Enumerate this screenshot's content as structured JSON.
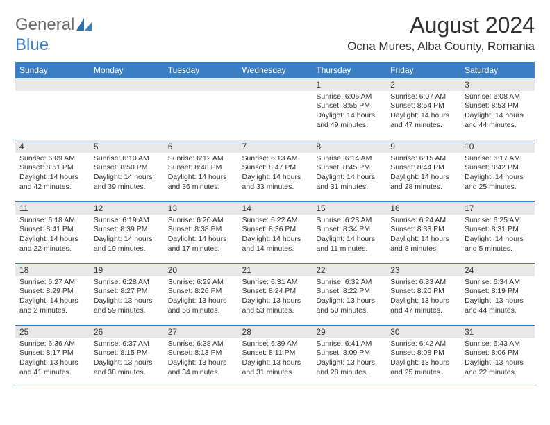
{
  "logo": {
    "general": "General",
    "blue": "Blue"
  },
  "title": "August 2024",
  "location": "Ocna Mures, Alba County, Romania",
  "header_color": "#3a7fc4",
  "cell_gray": "#e8e8e8",
  "text_color": "#333333",
  "body_fontsize": 10.5,
  "title_fontsize": 32,
  "days": [
    "Sunday",
    "Monday",
    "Tuesday",
    "Wednesday",
    "Thursday",
    "Friday",
    "Saturday"
  ],
  "weeks": [
    [
      null,
      null,
      null,
      null,
      {
        "n": "1",
        "sr": "6:06 AM",
        "ss": "8:55 PM",
        "dl": "14 hours and 49 minutes."
      },
      {
        "n": "2",
        "sr": "6:07 AM",
        "ss": "8:54 PM",
        "dl": "14 hours and 47 minutes."
      },
      {
        "n": "3",
        "sr": "6:08 AM",
        "ss": "8:53 PM",
        "dl": "14 hours and 44 minutes."
      }
    ],
    [
      {
        "n": "4",
        "sr": "6:09 AM",
        "ss": "8:51 PM",
        "dl": "14 hours and 42 minutes."
      },
      {
        "n": "5",
        "sr": "6:10 AM",
        "ss": "8:50 PM",
        "dl": "14 hours and 39 minutes."
      },
      {
        "n": "6",
        "sr": "6:12 AM",
        "ss": "8:48 PM",
        "dl": "14 hours and 36 minutes."
      },
      {
        "n": "7",
        "sr": "6:13 AM",
        "ss": "8:47 PM",
        "dl": "14 hours and 33 minutes."
      },
      {
        "n": "8",
        "sr": "6:14 AM",
        "ss": "8:45 PM",
        "dl": "14 hours and 31 minutes."
      },
      {
        "n": "9",
        "sr": "6:15 AM",
        "ss": "8:44 PM",
        "dl": "14 hours and 28 minutes."
      },
      {
        "n": "10",
        "sr": "6:17 AM",
        "ss": "8:42 PM",
        "dl": "14 hours and 25 minutes."
      }
    ],
    [
      {
        "n": "11",
        "sr": "6:18 AM",
        "ss": "8:41 PM",
        "dl": "14 hours and 22 minutes."
      },
      {
        "n": "12",
        "sr": "6:19 AM",
        "ss": "8:39 PM",
        "dl": "14 hours and 19 minutes."
      },
      {
        "n": "13",
        "sr": "6:20 AM",
        "ss": "8:38 PM",
        "dl": "14 hours and 17 minutes."
      },
      {
        "n": "14",
        "sr": "6:22 AM",
        "ss": "8:36 PM",
        "dl": "14 hours and 14 minutes."
      },
      {
        "n": "15",
        "sr": "6:23 AM",
        "ss": "8:34 PM",
        "dl": "14 hours and 11 minutes."
      },
      {
        "n": "16",
        "sr": "6:24 AM",
        "ss": "8:33 PM",
        "dl": "14 hours and 8 minutes."
      },
      {
        "n": "17",
        "sr": "6:25 AM",
        "ss": "8:31 PM",
        "dl": "14 hours and 5 minutes."
      }
    ],
    [
      {
        "n": "18",
        "sr": "6:27 AM",
        "ss": "8:29 PM",
        "dl": "14 hours and 2 minutes."
      },
      {
        "n": "19",
        "sr": "6:28 AM",
        "ss": "8:27 PM",
        "dl": "13 hours and 59 minutes."
      },
      {
        "n": "20",
        "sr": "6:29 AM",
        "ss": "8:26 PM",
        "dl": "13 hours and 56 minutes."
      },
      {
        "n": "21",
        "sr": "6:31 AM",
        "ss": "8:24 PM",
        "dl": "13 hours and 53 minutes."
      },
      {
        "n": "22",
        "sr": "6:32 AM",
        "ss": "8:22 PM",
        "dl": "13 hours and 50 minutes."
      },
      {
        "n": "23",
        "sr": "6:33 AM",
        "ss": "8:20 PM",
        "dl": "13 hours and 47 minutes."
      },
      {
        "n": "24",
        "sr": "6:34 AM",
        "ss": "8:19 PM",
        "dl": "13 hours and 44 minutes."
      }
    ],
    [
      {
        "n": "25",
        "sr": "6:36 AM",
        "ss": "8:17 PM",
        "dl": "13 hours and 41 minutes."
      },
      {
        "n": "26",
        "sr": "6:37 AM",
        "ss": "8:15 PM",
        "dl": "13 hours and 38 minutes."
      },
      {
        "n": "27",
        "sr": "6:38 AM",
        "ss": "8:13 PM",
        "dl": "13 hours and 34 minutes."
      },
      {
        "n": "28",
        "sr": "6:39 AM",
        "ss": "8:11 PM",
        "dl": "13 hours and 31 minutes."
      },
      {
        "n": "29",
        "sr": "6:41 AM",
        "ss": "8:09 PM",
        "dl": "13 hours and 28 minutes."
      },
      {
        "n": "30",
        "sr": "6:42 AM",
        "ss": "8:08 PM",
        "dl": "13 hours and 25 minutes."
      },
      {
        "n": "31",
        "sr": "6:43 AM",
        "ss": "8:06 PM",
        "dl": "13 hours and 22 minutes."
      }
    ]
  ],
  "labels": {
    "sunrise": "Sunrise:",
    "sunset": "Sunset:",
    "daylight": "Daylight:"
  }
}
